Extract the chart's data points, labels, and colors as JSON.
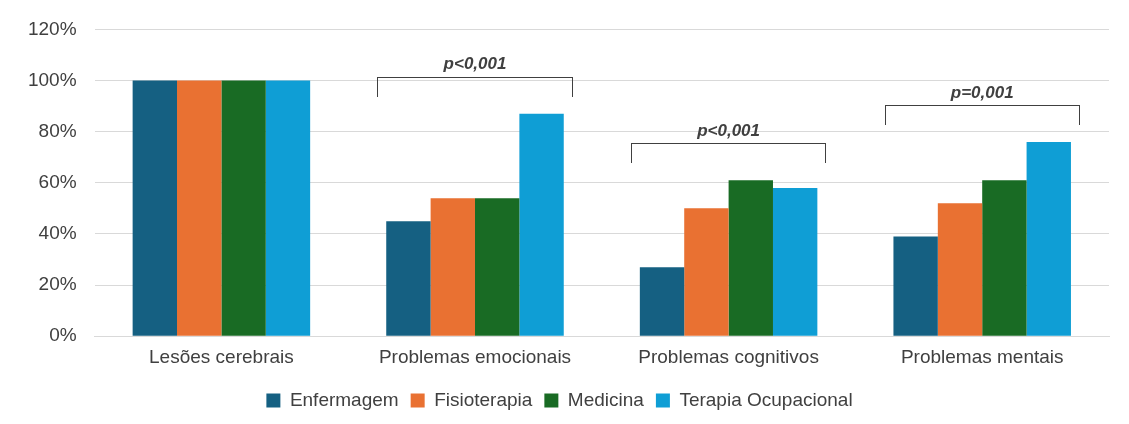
{
  "chart_data": {
    "type": "bar",
    "categories": [
      "Lesões cerebrais",
      "Problemas emocionais",
      "Problemas cognitivos",
      "Problemas mentais"
    ],
    "series": [
      {
        "name": "Enfermagem",
        "color": "#156082",
        "values": [
          100,
          45,
          27,
          39
        ]
      },
      {
        "name": "Fisioterapia",
        "color": "#e97132",
        "values": [
          100,
          54,
          50,
          52
        ]
      },
      {
        "name": "Medicina",
        "color": "#196b24",
        "values": [
          100,
          54,
          61,
          61
        ]
      },
      {
        "name": "Terapia Ocupacional",
        "color": "#0f9ed5",
        "values": [
          100,
          87,
          58,
          76
        ]
      }
    ],
    "ylim": [
      0,
      120
    ],
    "yticks": [
      {
        "value": 0,
        "label": "0%"
      },
      {
        "value": 20,
        "label": "20%"
      },
      {
        "value": 40,
        "label": "40%"
      },
      {
        "value": 60,
        "label": "60%"
      },
      {
        "value": 80,
        "label": "80%"
      },
      {
        "value": 100,
        "label": "100%"
      },
      {
        "value": 120,
        "label": "120%"
      }
    ],
    "annotations": [
      "p<0,001",
      "p<0,001",
      "p=0,001"
    ],
    "grid": "y",
    "legend": "bottom"
  }
}
